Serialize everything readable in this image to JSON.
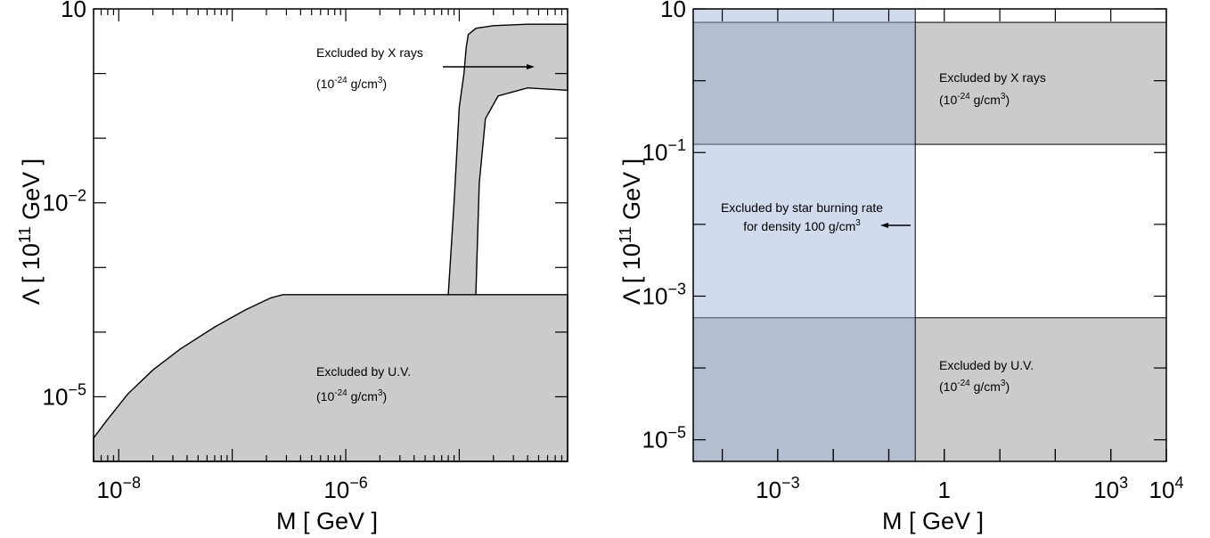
{
  "chart_data": [
    {
      "type": "area",
      "xlabel": "M [ GeV ]",
      "ylabel_main": "Λ [ 10",
      "ylabel_exp": "11",
      "ylabel_unit": " GeV ]",
      "x_scale": "log",
      "y_scale": "log",
      "xlim": [
        6e-09,
        9e-05
      ],
      "ylim": [
        1e-06,
        10
      ],
      "x_ticks": [
        {
          "base": "10",
          "exp": "−8",
          "value": 1e-08
        },
        {
          "base": "10",
          "exp": "−6",
          "value": 1e-06
        }
      ],
      "y_ticks": [
        {
          "base": "10",
          "exp": "",
          "value": 10
        },
        {
          "base": "10",
          "exp": "−2",
          "value": 0.01
        },
        {
          "base": "10",
          "exp": "−5",
          "value": 1e-05
        }
      ],
      "series": [
        {
          "name": "Excluded by U.V.",
          "x": [
            6e-09,
            8e-09,
            1.2e-08,
            2e-08,
            3.5e-08,
            7e-08,
            1.3e-07,
            2.2e-07,
            2.8e-07,
            9e-05
          ],
          "y": [
            2.3e-06,
            4.5e-06,
            1.1e-05,
            2.6e-05,
            5.5e-05,
            0.00012,
            0.00022,
            0.00034,
            0.00038,
            0.00038
          ]
        },
        {
          "name": "Excluded by X rays",
          "x": [
            8e-06,
            9e-06,
            1e-05,
            1.1e-05,
            1.15e-05,
            1.2e-05,
            1.4e-05,
            2e-05,
            4e-05,
            9e-05,
            9e-05,
            4e-05,
            2.2e-05,
            1.7e-05,
            1.5e-05,
            1.4e-05
          ],
          "y": [
            0.00038,
            0.01,
            0.3,
            1.0,
            2.5,
            4.0,
            5.0,
            5.5,
            5.8,
            5.8,
            0.55,
            0.6,
            0.45,
            0.2,
            0.02,
            0.00038
          ]
        }
      ],
      "annotations": [
        {
          "line1": "Excluded by X rays",
          "line2_pre": "(10",
          "line2_exp": "-24",
          "line2_mid": "  g/cm",
          "line2_exp2": "3",
          "line2_post": ")"
        },
        {
          "line1": "Excluded by U.V.",
          "line2_pre": "(10",
          "line2_exp": "-24",
          "line2_mid": "  g/cm",
          "line2_exp2": "3",
          "line2_post": ")"
        }
      ]
    },
    {
      "type": "area",
      "xlabel": "M [ GeV ]",
      "ylabel_main": "Λ [ 10",
      "ylabel_exp": "11",
      "ylabel_unit": " GeV ]",
      "x_scale": "log",
      "y_scale": "log",
      "xlim": [
        3e-05,
        10000
      ],
      "ylim": [
        5e-06,
        10
      ],
      "x_ticks": [
        {
          "base": "10",
          "exp": "−3",
          "value": 0.001
        },
        {
          "base": "1",
          "exp": "",
          "value": 1
        },
        {
          "base": "10",
          "exp": "3",
          "value": 1000
        },
        {
          "base": "10",
          "exp": "4",
          "value": 10000
        }
      ],
      "y_ticks": [
        {
          "base": "10",
          "exp": "",
          "value": 10
        },
        {
          "base": "10",
          "exp": "−1",
          "value": 0.1
        },
        {
          "base": "10",
          "exp": "−3",
          "value": 0.001
        },
        {
          "base": "10",
          "exp": "−5",
          "value": 1e-05
        }
      ],
      "regions": [
        {
          "name": "Excluded by X rays",
          "xmin": 3e-05,
          "xmax": 10000,
          "ymin": 0.13,
          "ymax": 6.5,
          "color": "#cbcbcb"
        },
        {
          "name": "Excluded by U.V.",
          "xmin": 3e-05,
          "xmax": 10000,
          "ymin": 5e-06,
          "ymax": 0.0005,
          "color": "#cbcbcb"
        },
        {
          "name": "Excluded by star burning rate",
          "xmin": 3e-05,
          "xmax": 0.3,
          "ymin": 5e-06,
          "ymax": 10,
          "color": "#9aafd6"
        }
      ],
      "star_rate_mass_limit": 0.3,
      "annotations": [
        {
          "line1": "Excluded by X rays",
          "line2_pre": "(10",
          "line2_exp": "-24",
          "line2_mid": "  g/cm",
          "line2_exp2": "3",
          "line2_post": ")"
        },
        {
          "line1": "Excluded by U.V.",
          "line2_pre": "(10",
          "line2_exp": "-24",
          "line2_mid": "  g/cm",
          "line2_exp2": "3",
          "line2_post": ")"
        },
        {
          "line1": "Excluded by star burning rate",
          "line2_pre": "for density 100 g/cm",
          "line2_exp": "3"
        }
      ]
    }
  ],
  "colors": {
    "excluded_gray": "#cbcbcb",
    "star_rate_blue": "#9aafd6",
    "axes": "#000000"
  }
}
